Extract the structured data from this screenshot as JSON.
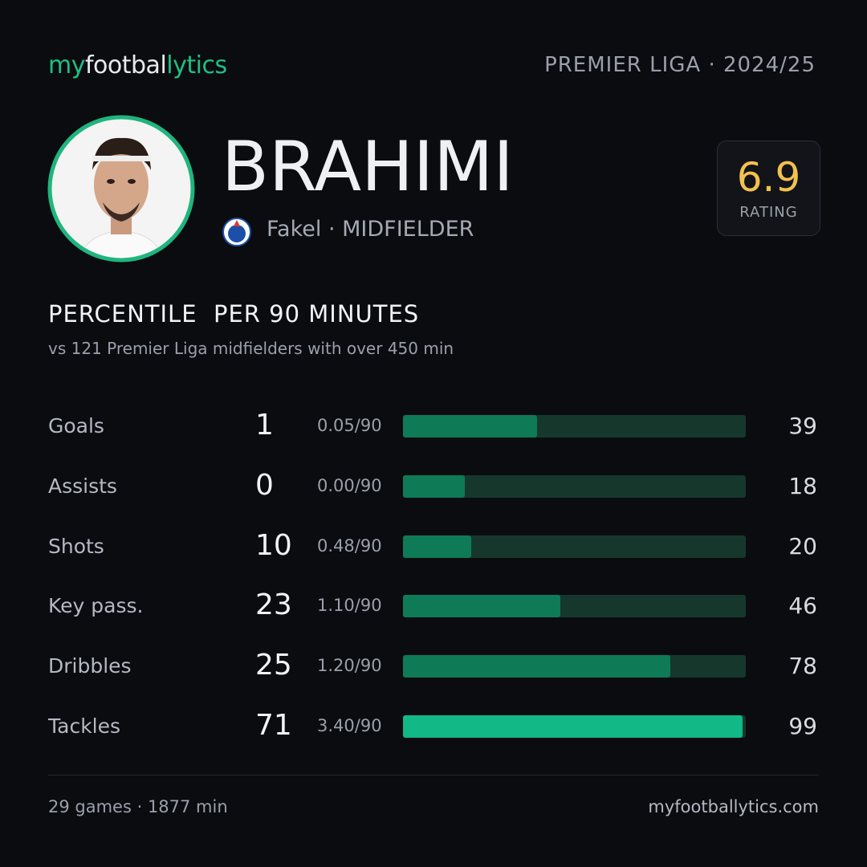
{
  "header": {
    "logo": [
      "my",
      "footbal",
      "lytics"
    ],
    "league": "PREMIER LIGA · 2024/25"
  },
  "player": {
    "name": "BRAHIMI",
    "club": "Fakel · MIDFIELDER"
  },
  "rating": {
    "value": 6.9,
    "label": "RATING"
  },
  "section": {
    "title": "PERCENTILE  PER 90 MINUTES",
    "subtitle": "vs 121 Premier Liga midfielders with over 450 min"
  },
  "stats": [
    {
      "label": "Goals",
      "total": 1,
      "per90": "0.05/90",
      "percentile": 39,
      "color": "#0e7a56"
    },
    {
      "label": "Assists",
      "total": 0,
      "per90": "0.00/90",
      "percentile": 18,
      "color": "#0e7a56"
    },
    {
      "label": "Shots",
      "total": 10,
      "per90": "0.48/90",
      "percentile": 20,
      "color": "#0e7a56"
    },
    {
      "label": "Key pass.",
      "total": 23,
      "per90": "1.10/90",
      "percentile": 46,
      "color": "#0e7a56"
    },
    {
      "label": "Dribbles",
      "total": 25,
      "per90": "1.20/90",
      "percentile": 78,
      "color": "#0e7a56"
    },
    {
      "label": "Tackles",
      "total": 71,
      "per90": "3.40/90",
      "percentile": 99,
      "color": "#12b886"
    }
  ],
  "footer": {
    "left": "29 games · 1877 min",
    "right": "myfootballytics.com"
  }
}
